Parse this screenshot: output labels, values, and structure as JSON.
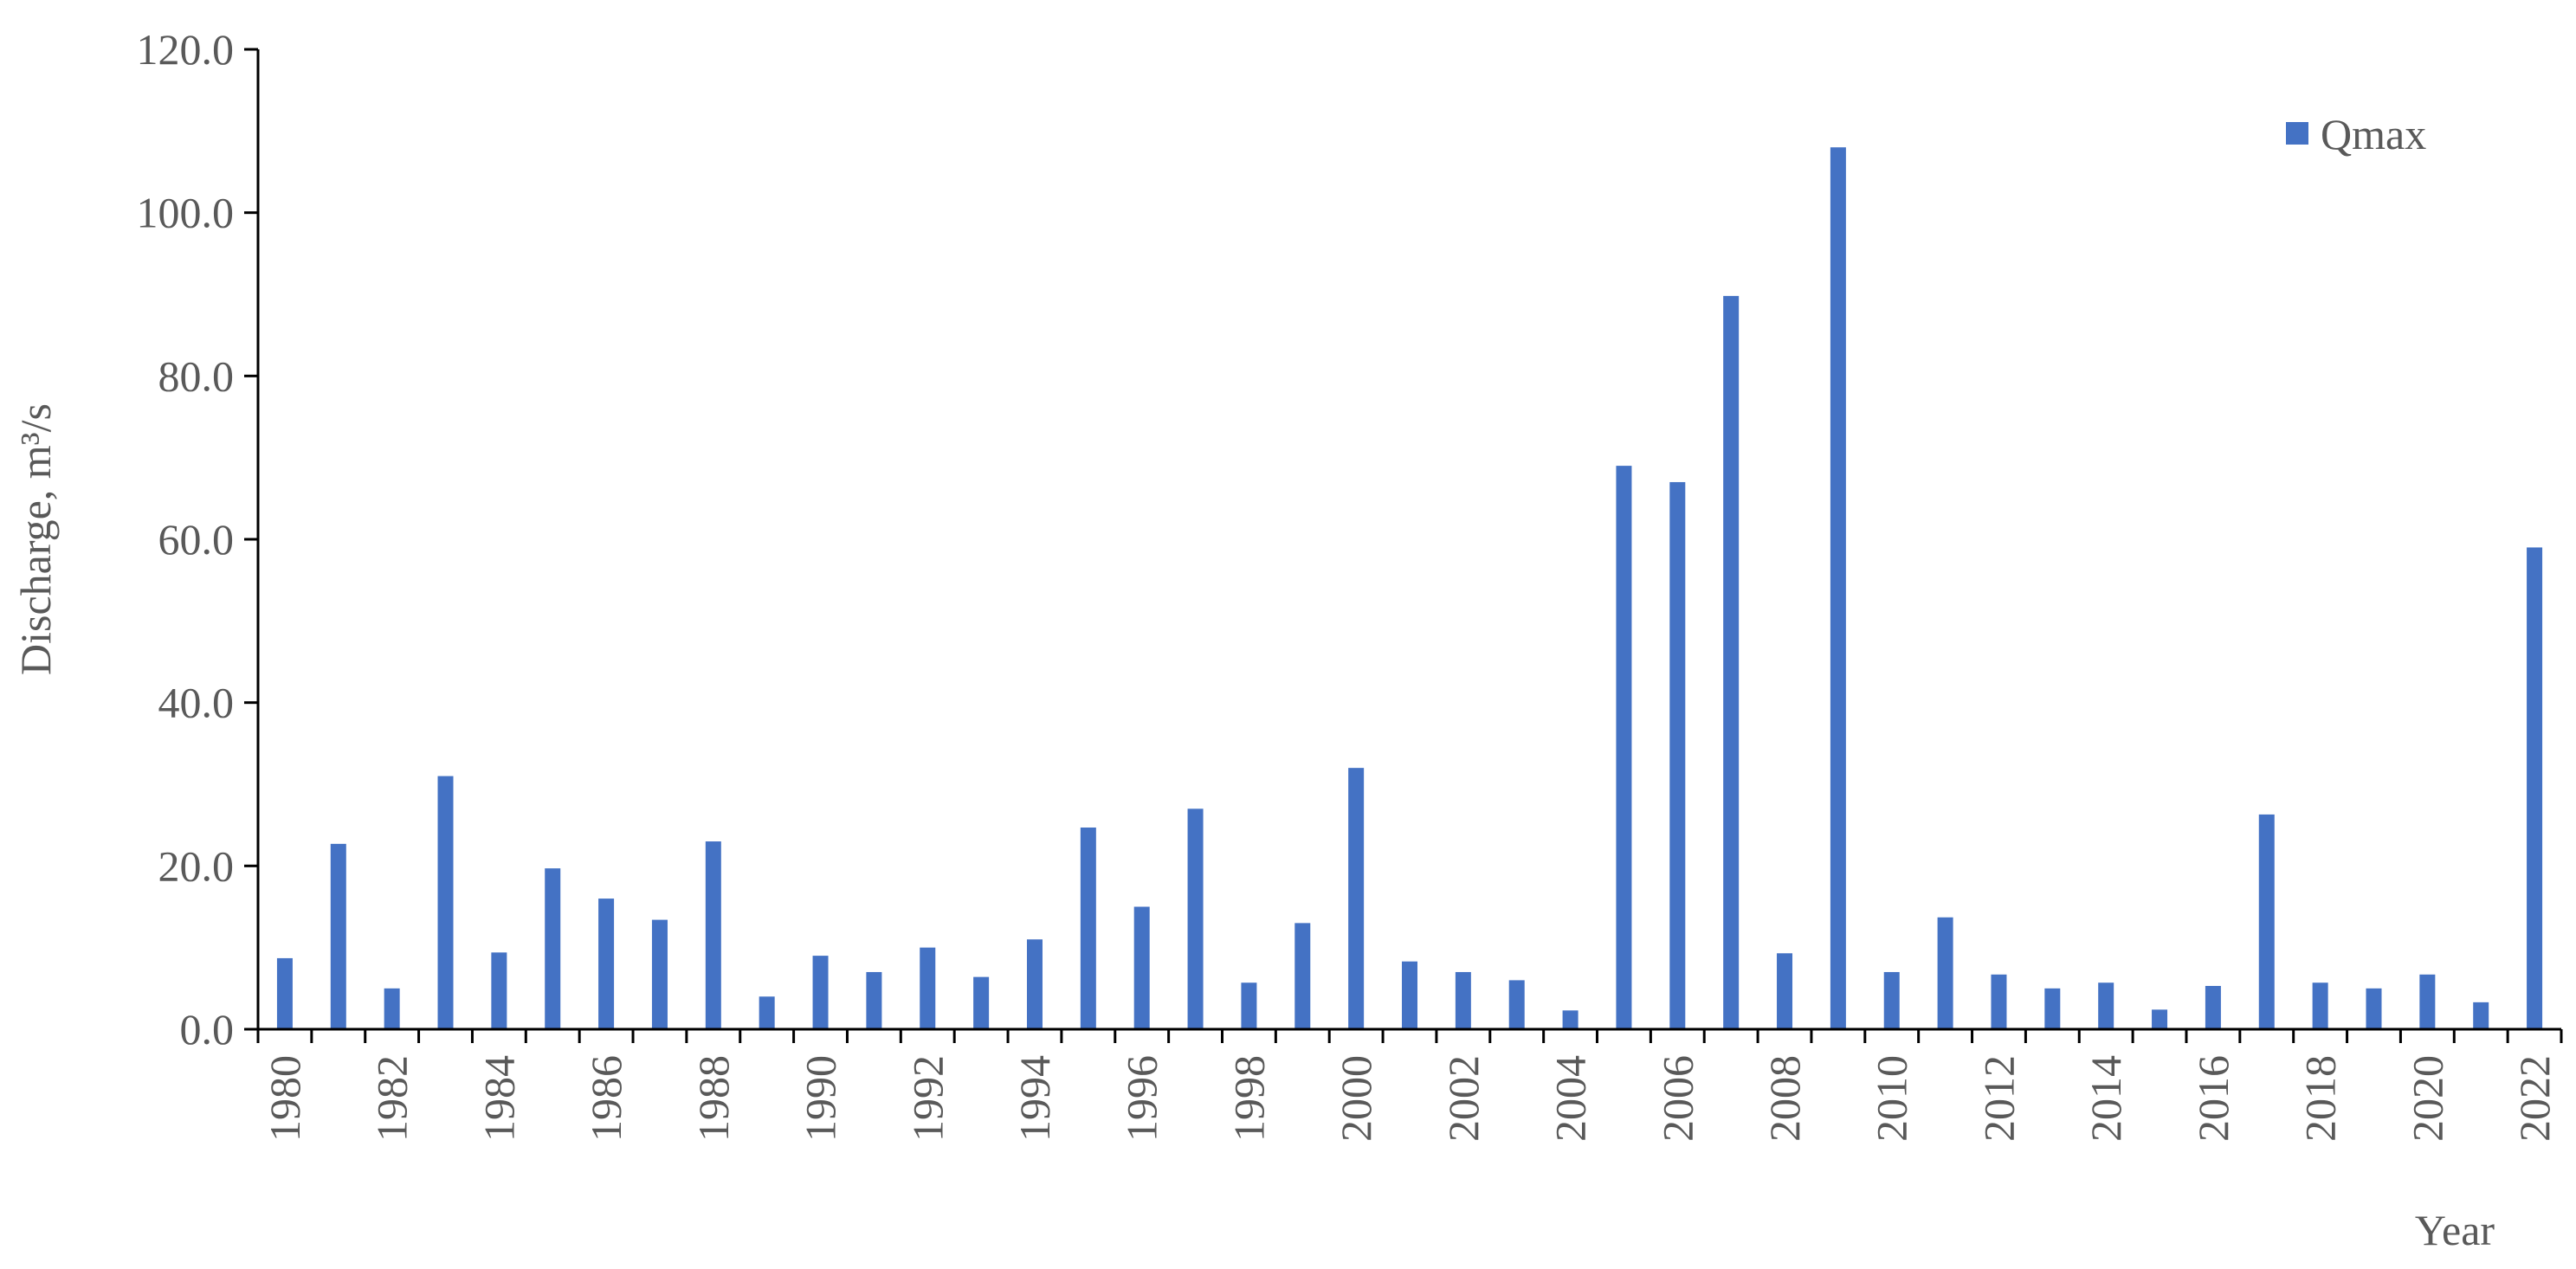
{
  "chart_data": {
    "type": "bar",
    "title": "",
    "xlabel": "Year",
    "ylabel": "Discharge, m³/s",
    "ylim": [
      0,
      120
    ],
    "yticks": [
      "0.0",
      "20.0",
      "40.0",
      "60.0",
      "80.0",
      "100.0",
      "120.0"
    ],
    "grid": false,
    "legend": {
      "position": "top-right",
      "entries": [
        "Qmax"
      ]
    },
    "colors": {
      "bar": "#4472C4",
      "axis": "#000000",
      "text": "#595959"
    },
    "categories": [
      "1980",
      "1981",
      "1982",
      "1983",
      "1984",
      "1985",
      "1986",
      "1987",
      "1988",
      "1989",
      "1990",
      "1991",
      "1992",
      "1993",
      "1994",
      "1995",
      "1996",
      "1997",
      "1998",
      "1999",
      "2000",
      "2001",
      "2002",
      "2003",
      "2004",
      "2005",
      "2006",
      "2007",
      "2008",
      "2009",
      "2010",
      "2011",
      "2012",
      "2013",
      "2014",
      "2015",
      "2016",
      "2017",
      "2018",
      "2019",
      "2020",
      "2021",
      "2022"
    ],
    "tick_labels": [
      "1980",
      "1982",
      "1984",
      "1986",
      "1988",
      "1990",
      "1992",
      "1994",
      "1996",
      "1998",
      "2000",
      "2002",
      "2004",
      "2006",
      "2008",
      "2010",
      "2012",
      "2014",
      "2016",
      "2018",
      "2020",
      "2022"
    ],
    "series": [
      {
        "name": "Qmax",
        "values": [
          8.7,
          22.7,
          5.0,
          31.0,
          9.4,
          19.7,
          16.0,
          13.4,
          23.0,
          4.0,
          9.0,
          7.0,
          10.0,
          6.4,
          11.0,
          24.7,
          15.0,
          27.0,
          5.7,
          13.0,
          32.0,
          8.3,
          7.0,
          6.0,
          2.3,
          69.0,
          67.0,
          89.8,
          9.3,
          108.0,
          7.0,
          13.7,
          6.7,
          5.0,
          5.7,
          2.4,
          5.3,
          26.3,
          5.7,
          5.0,
          6.7,
          3.3,
          59.0
        ]
      }
    ]
  }
}
